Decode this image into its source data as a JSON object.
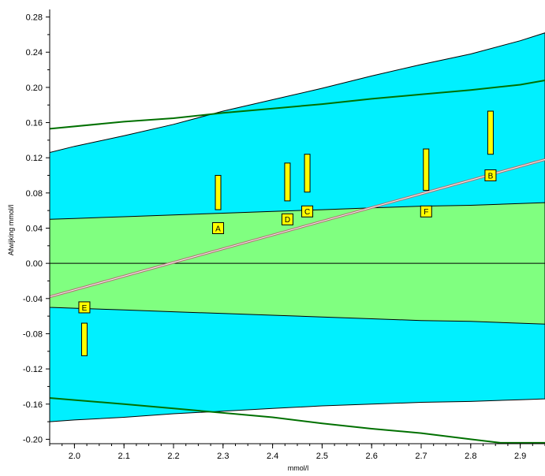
{
  "chart_data": {
    "type": "line",
    "title": "",
    "xlabel": "mmol/l",
    "ylabel": "Afwijking mmol/l",
    "xlim": [
      1.95,
      2.95
    ],
    "ylim": [
      -0.205,
      0.285
    ],
    "x_ticks": [
      2.0,
      2.1,
      2.2,
      2.3,
      2.4,
      2.5,
      2.6,
      2.7,
      2.8,
      2.9
    ],
    "x_tick_labels": [
      "2.0",
      "2.1",
      "2.2",
      "2.3",
      "2.4",
      "2.5",
      "2.6",
      "2.7",
      "2.8",
      "2.9"
    ],
    "y_ticks": [
      -0.2,
      -0.16,
      -0.12,
      -0.08,
      -0.04,
      0.0,
      0.04,
      0.08,
      0.12,
      0.16,
      0.2,
      0.24,
      0.28
    ],
    "y_tick_labels": [
      "-0.20",
      "-0.16",
      "-0.12",
      "-0.08",
      "-0.04",
      "0.00",
      "0.04",
      "0.08",
      "0.12",
      "0.16",
      "0.20",
      "0.24",
      "0.28"
    ],
    "grid": false,
    "legend": "none",
    "colors": {
      "outer_band": "#00f0ff",
      "inner_band": "#80ff80",
      "green_limit": "#007000",
      "trend_line": "#b07070",
      "marker_fill": "#ffff00",
      "axis": "#000000"
    },
    "outer_band": {
      "x": [
        1.95,
        2.0,
        2.1,
        2.2,
        2.3,
        2.4,
        2.5,
        2.6,
        2.7,
        2.8,
        2.9,
        2.95
      ],
      "upper": [
        0.126,
        0.133,
        0.145,
        0.158,
        0.173,
        0.186,
        0.199,
        0.213,
        0.226,
        0.238,
        0.253,
        0.262
      ],
      "lower": [
        -0.18,
        -0.178,
        -0.175,
        -0.171,
        -0.168,
        -0.165,
        -0.162,
        -0.16,
        -0.158,
        -0.157,
        -0.155,
        -0.154
      ]
    },
    "inner_band": {
      "x": [
        1.95,
        2.0,
        2.1,
        2.2,
        2.3,
        2.4,
        2.5,
        2.6,
        2.7,
        2.8,
        2.9,
        2.95
      ],
      "upper": [
        0.05,
        0.051,
        0.053,
        0.055,
        0.057,
        0.059,
        0.061,
        0.063,
        0.065,
        0.066,
        0.068,
        0.069
      ],
      "lower": [
        -0.05,
        -0.051,
        -0.053,
        -0.055,
        -0.057,
        -0.059,
        -0.061,
        -0.063,
        -0.065,
        -0.066,
        -0.068,
        -0.069
      ]
    },
    "green_upper_line": {
      "x": [
        1.95,
        2.1,
        2.2,
        2.3,
        2.4,
        2.5,
        2.6,
        2.7,
        2.8,
        2.9,
        2.95
      ],
      "y": [
        0.153,
        0.161,
        0.165,
        0.171,
        0.176,
        0.181,
        0.187,
        0.192,
        0.197,
        0.203,
        0.208
      ]
    },
    "green_lower_line": {
      "x": [
        1.95,
        2.1,
        2.2,
        2.3,
        2.4,
        2.5,
        2.6,
        2.7,
        2.8,
        2.86,
        2.95
      ],
      "y": [
        -0.153,
        -0.16,
        -0.165,
        -0.17,
        -0.175,
        -0.182,
        -0.188,
        -0.193,
        -0.2,
        -0.204,
        -0.204
      ]
    },
    "zero_line": 0.0,
    "trend_line": {
      "x": [
        1.95,
        2.95
      ],
      "y": [
        -0.038,
        0.118
      ]
    },
    "points": [
      {
        "label": "A",
        "x": 2.29,
        "y": 0.04,
        "bar_low": 0.061,
        "bar_high": 0.1
      },
      {
        "label": "D",
        "x": 2.43,
        "y": 0.05,
        "bar_low": 0.071,
        "bar_high": 0.114
      },
      {
        "label": "C",
        "x": 2.47,
        "y": 0.059,
        "bar_low": 0.081,
        "bar_high": 0.124
      },
      {
        "label": "F",
        "x": 2.71,
        "y": 0.059,
        "bar_low": 0.083,
        "bar_high": 0.13
      },
      {
        "label": "B",
        "x": 2.84,
        "y": 0.1,
        "bar_low": 0.124,
        "bar_high": 0.173
      },
      {
        "label": "E",
        "x": 2.02,
        "y": -0.05,
        "bar_low": -0.105,
        "bar_high": -0.068
      }
    ]
  }
}
